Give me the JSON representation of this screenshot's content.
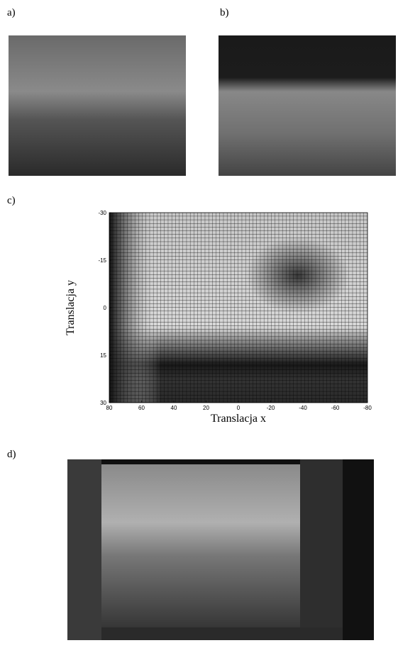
{
  "panel_labels": [
    "a)",
    "b)",
    "c)",
    "d)"
  ],
  "chart_data": {
    "type": "heatmap",
    "x_label": "Translacja x",
    "y_label": "Translacja y",
    "xlim": [
      80,
      -80
    ],
    "xticks": [
      80,
      60,
      40,
      20,
      0,
      -20,
      -40,
      -60,
      -80
    ],
    "ylim": [
      30,
      -30
    ],
    "yticks": [
      -30,
      -15,
      0,
      15,
      30
    ]
  }
}
